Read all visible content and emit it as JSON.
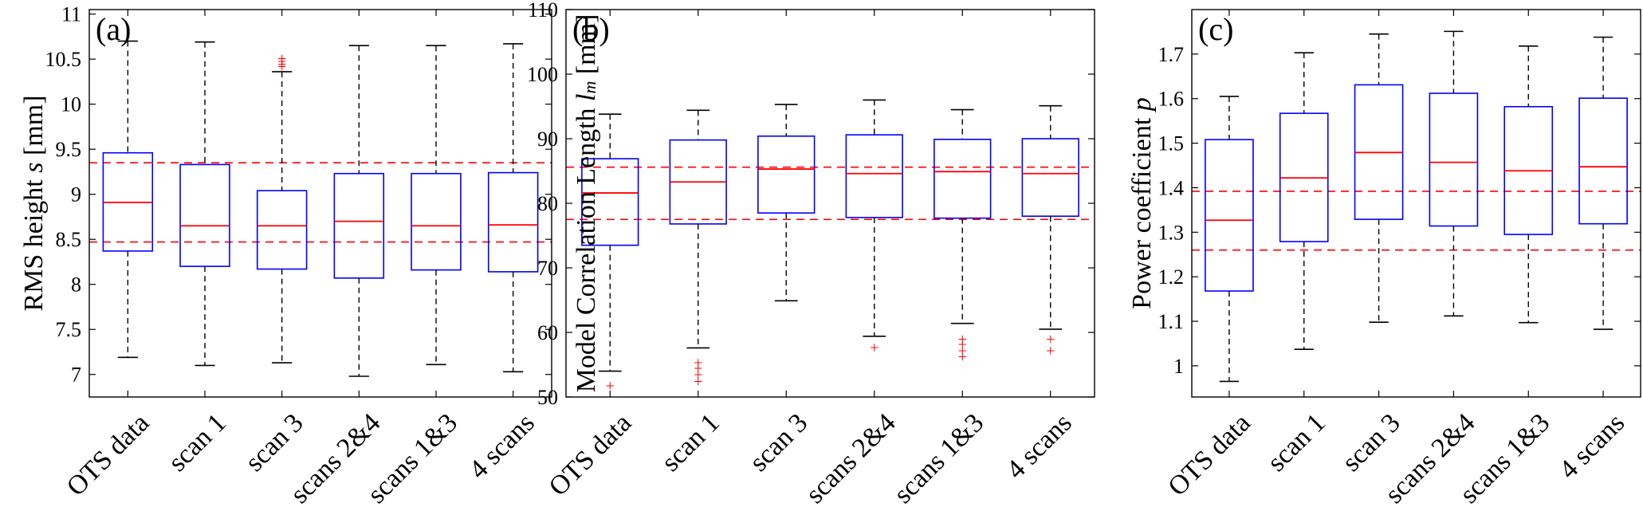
{
  "colors": {
    "box": "#0000ff",
    "median": "#ff0000",
    "whisker": "#000000",
    "outlier": "#ff0000",
    "reference_line": "#ff0000"
  },
  "chart_data": [
    {
      "type": "box",
      "panel_label": "(a)",
      "ylabel_prefix": "RMS height ",
      "ylabel_symbol": "s",
      "ylabel_suffix": " [mm]",
      "ylim": [
        6.75,
        11.05
      ],
      "yticks": [
        7,
        7.5,
        8,
        8.5,
        9,
        9.5,
        10,
        10.5,
        11
      ],
      "categories": [
        "OTS data",
        "scan 1",
        "scan 3",
        "scans 2&4",
        "scans 1&3",
        "4 scans"
      ],
      "boxes": [
        {
          "whisker_low": 7.19,
          "q1": 8.37,
          "median": 8.91,
          "q3": 9.46,
          "whisker_high": 10.7,
          "outliers": []
        },
        {
          "whisker_low": 7.1,
          "q1": 8.2,
          "median": 8.65,
          "q3": 9.33,
          "whisker_high": 10.69,
          "outliers": []
        },
        {
          "whisker_low": 7.13,
          "q1": 8.17,
          "median": 8.65,
          "q3": 9.04,
          "whisker_high": 10.36,
          "outliers": [
            10.42,
            10.45,
            10.48,
            10.51
          ]
        },
        {
          "whisker_low": 6.98,
          "q1": 8.07,
          "median": 8.7,
          "q3": 9.23,
          "whisker_high": 10.65,
          "outliers": []
        },
        {
          "whisker_low": 7.11,
          "q1": 8.16,
          "median": 8.65,
          "q3": 9.23,
          "whisker_high": 10.65,
          "outliers": []
        },
        {
          "whisker_low": 7.03,
          "q1": 8.14,
          "median": 8.66,
          "q3": 9.24,
          "whisker_high": 10.67,
          "outliers": []
        }
      ],
      "reference_lines": [
        8.47,
        9.35
      ]
    },
    {
      "type": "box",
      "panel_label": "(b)",
      "ylabel_prefix": "Model Correlation Length ",
      "ylabel_symbol": "l",
      "ylabel_subscript": "m",
      "ylabel_suffix": " [mm]",
      "ylim": [
        50,
        110
      ],
      "yticks": [
        50,
        60,
        70,
        80,
        90,
        100,
        110
      ],
      "categories": [
        "OTS data",
        "scan 1",
        "scan 3",
        "scans 2&4",
        "scans 1&3",
        "4 scans"
      ],
      "boxes": [
        {
          "whisker_low": 54.0,
          "q1": 73.5,
          "median": 81.6,
          "q3": 86.9,
          "whisker_high": 93.8,
          "outliers": [
            51.8
          ]
        },
        {
          "whisker_low": 57.6,
          "q1": 76.8,
          "median": 83.3,
          "q3": 89.8,
          "whisker_high": 94.4,
          "outliers": [
            52.5,
            53.5,
            54.5,
            55.4
          ]
        },
        {
          "whisker_low": 64.9,
          "q1": 78.5,
          "median": 85.3,
          "q3": 90.4,
          "whisker_high": 95.3,
          "outliers": []
        },
        {
          "whisker_low": 59.4,
          "q1": 77.8,
          "median": 84.6,
          "q3": 90.6,
          "whisker_high": 96.0,
          "outliers": [
            57.7
          ]
        },
        {
          "whisker_low": 61.4,
          "q1": 77.7,
          "median": 84.9,
          "q3": 89.9,
          "whisker_high": 94.5,
          "outliers": [
            56.3,
            57.2,
            58.2,
            59.0
          ]
        },
        {
          "whisker_low": 60.5,
          "q1": 78.0,
          "median": 84.6,
          "q3": 90.0,
          "whisker_high": 95.1,
          "outliers": [
            57.2,
            59.0
          ]
        }
      ],
      "reference_lines": [
        77.5,
        85.6
      ]
    },
    {
      "type": "box",
      "panel_label": "(c)",
      "ylabel_prefix": "Power coefficient ",
      "ylabel_symbol": "p",
      "ylabel_suffix": "",
      "ylim": [
        0.93,
        1.8
      ],
      "yticks": [
        1,
        1.1,
        1.2,
        1.3,
        1.4,
        1.5,
        1.6,
        1.7
      ],
      "categories": [
        "OTS data",
        "scan 1",
        "scan 3",
        "scans 2&4",
        "scans 1&3",
        "4 scans"
      ],
      "boxes": [
        {
          "whisker_low": 0.965,
          "q1": 1.168,
          "median": 1.327,
          "q3": 1.508,
          "whisker_high": 1.605,
          "outliers": []
        },
        {
          "whisker_low": 1.037,
          "q1": 1.279,
          "median": 1.422,
          "q3": 1.567,
          "whisker_high": 1.703,
          "outliers": []
        },
        {
          "whisker_low": 1.098,
          "q1": 1.329,
          "median": 1.479,
          "q3": 1.631,
          "whisker_high": 1.745,
          "outliers": []
        },
        {
          "whisker_low": 1.112,
          "q1": 1.314,
          "median": 1.457,
          "q3": 1.612,
          "whisker_high": 1.751,
          "outliers": []
        },
        {
          "whisker_low": 1.097,
          "q1": 1.295,
          "median": 1.438,
          "q3": 1.582,
          "whisker_high": 1.718,
          "outliers": []
        },
        {
          "whisker_low": 1.082,
          "q1": 1.319,
          "median": 1.447,
          "q3": 1.601,
          "whisker_high": 1.738,
          "outliers": []
        }
      ],
      "reference_lines": [
        1.26,
        1.392
      ]
    }
  ]
}
